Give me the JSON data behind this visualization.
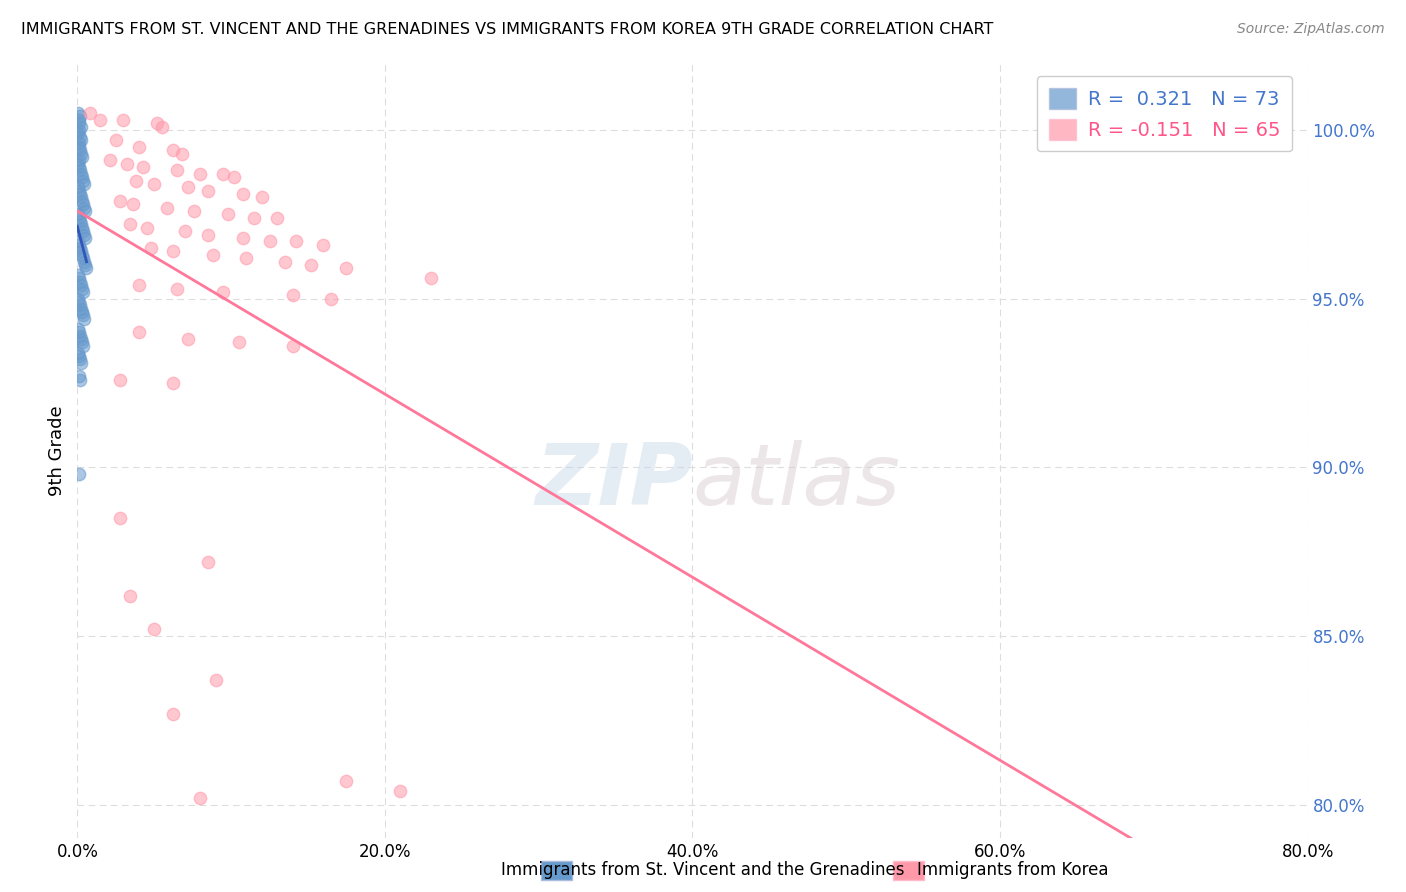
{
  "title": "IMMIGRANTS FROM ST. VINCENT AND THE GRENADINES VS IMMIGRANTS FROM KOREA 9TH GRADE CORRELATION CHART",
  "source": "Source: ZipAtlas.com",
  "ylabel": "9th Grade",
  "yticks": [
    80.0,
    85.0,
    90.0,
    95.0,
    100.0
  ],
  "xticks": [
    0.0,
    20.0,
    40.0,
    60.0,
    80.0
  ],
  "xtick_labels": [
    "0.0%",
    "20.0%",
    "40.0%",
    "60.0%",
    "80.0%"
  ],
  "xmin": 0.0,
  "xmax": 80.0,
  "ymin": 79.0,
  "ymax": 102.0,
  "blue_R": 0.321,
  "blue_N": 73,
  "pink_R": -0.151,
  "pink_N": 65,
  "blue_color": "#6699CC",
  "pink_color": "#FF99AA",
  "blue_label": "Immigrants from St. Vincent and the Grenadines",
  "pink_label": "Immigrants from Korea",
  "watermark_zip": "ZIP",
  "watermark_atlas": "atlas",
  "blue_points": [
    [
      0.05,
      100.5
    ],
    [
      0.1,
      100.3
    ],
    [
      0.18,
      100.4
    ],
    [
      0.08,
      100.2
    ],
    [
      0.22,
      100.1
    ],
    [
      0.12,
      100.0
    ],
    [
      0.06,
      99.9
    ],
    [
      0.15,
      99.8
    ],
    [
      0.25,
      99.7
    ],
    [
      0.09,
      99.6
    ],
    [
      0.13,
      99.5
    ],
    [
      0.19,
      99.4
    ],
    [
      0.23,
      99.3
    ],
    [
      0.31,
      99.2
    ],
    [
      0.09,
      99.1
    ],
    [
      0.06,
      99.0
    ],
    [
      0.13,
      98.9
    ],
    [
      0.19,
      98.8
    ],
    [
      0.26,
      98.7
    ],
    [
      0.33,
      98.6
    ],
    [
      0.39,
      98.5
    ],
    [
      0.43,
      98.4
    ],
    [
      0.06,
      98.3
    ],
    [
      0.09,
      98.2
    ],
    [
      0.16,
      98.1
    ],
    [
      0.23,
      98.0
    ],
    [
      0.29,
      97.9
    ],
    [
      0.36,
      97.8
    ],
    [
      0.43,
      97.7
    ],
    [
      0.49,
      97.6
    ],
    [
      0.06,
      97.5
    ],
    [
      0.11,
      97.4
    ],
    [
      0.19,
      97.3
    ],
    [
      0.26,
      97.2
    ],
    [
      0.33,
      97.1
    ],
    [
      0.39,
      97.0
    ],
    [
      0.46,
      96.9
    ],
    [
      0.53,
      96.8
    ],
    [
      0.07,
      96.7
    ],
    [
      0.13,
      96.6
    ],
    [
      0.19,
      96.5
    ],
    [
      0.25,
      96.4
    ],
    [
      0.31,
      96.3
    ],
    [
      0.37,
      96.2
    ],
    [
      0.43,
      96.1
    ],
    [
      0.49,
      96.0
    ],
    [
      0.55,
      95.9
    ],
    [
      0.07,
      95.7
    ],
    [
      0.13,
      95.6
    ],
    [
      0.19,
      95.5
    ],
    [
      0.25,
      95.4
    ],
    [
      0.31,
      95.3
    ],
    [
      0.37,
      95.2
    ],
    [
      0.07,
      95.0
    ],
    [
      0.13,
      94.9
    ],
    [
      0.19,
      94.8
    ],
    [
      0.25,
      94.7
    ],
    [
      0.33,
      94.6
    ],
    [
      0.39,
      94.5
    ],
    [
      0.46,
      94.4
    ],
    [
      0.07,
      94.1
    ],
    [
      0.13,
      94.0
    ],
    [
      0.19,
      93.9
    ],
    [
      0.25,
      93.8
    ],
    [
      0.33,
      93.7
    ],
    [
      0.39,
      93.6
    ],
    [
      0.07,
      93.4
    ],
    [
      0.13,
      93.3
    ],
    [
      0.19,
      93.2
    ],
    [
      0.26,
      93.1
    ],
    [
      0.09,
      92.7
    ],
    [
      0.15,
      92.6
    ],
    [
      0.09,
      89.8
    ]
  ],
  "pink_points": [
    [
      0.8,
      100.5
    ],
    [
      1.5,
      100.3
    ],
    [
      3.0,
      100.3
    ],
    [
      5.2,
      100.2
    ],
    [
      5.5,
      100.1
    ],
    [
      2.5,
      99.7
    ],
    [
      4.0,
      99.5
    ],
    [
      6.2,
      99.4
    ],
    [
      6.8,
      99.3
    ],
    [
      2.1,
      99.1
    ],
    [
      3.2,
      99.0
    ],
    [
      4.3,
      98.9
    ],
    [
      6.5,
      98.8
    ],
    [
      8.0,
      98.7
    ],
    [
      9.5,
      98.7
    ],
    [
      10.2,
      98.6
    ],
    [
      3.8,
      98.5
    ],
    [
      5.0,
      98.4
    ],
    [
      7.2,
      98.3
    ],
    [
      8.5,
      98.2
    ],
    [
      10.8,
      98.1
    ],
    [
      12.0,
      98.0
    ],
    [
      2.8,
      97.9
    ],
    [
      3.6,
      97.8
    ],
    [
      5.8,
      97.7
    ],
    [
      7.6,
      97.6
    ],
    [
      9.8,
      97.5
    ],
    [
      11.5,
      97.4
    ],
    [
      13.0,
      97.4
    ],
    [
      3.4,
      97.2
    ],
    [
      4.5,
      97.1
    ],
    [
      7.0,
      97.0
    ],
    [
      8.5,
      96.9
    ],
    [
      10.8,
      96.8
    ],
    [
      12.5,
      96.7
    ],
    [
      14.2,
      96.7
    ],
    [
      16.0,
      96.6
    ],
    [
      4.8,
      96.5
    ],
    [
      6.2,
      96.4
    ],
    [
      8.8,
      96.3
    ],
    [
      11.0,
      96.2
    ],
    [
      13.5,
      96.1
    ],
    [
      15.2,
      96.0
    ],
    [
      17.5,
      95.9
    ],
    [
      23.0,
      95.6
    ],
    [
      4.0,
      95.4
    ],
    [
      6.5,
      95.3
    ],
    [
      9.5,
      95.2
    ],
    [
      14.0,
      95.1
    ],
    [
      16.5,
      95.0
    ],
    [
      4.0,
      94.0
    ],
    [
      7.2,
      93.8
    ],
    [
      10.5,
      93.7
    ],
    [
      14.0,
      93.6
    ],
    [
      2.8,
      92.6
    ],
    [
      6.2,
      92.5
    ],
    [
      2.8,
      88.5
    ],
    [
      5.0,
      85.2
    ],
    [
      9.0,
      83.7
    ],
    [
      17.5,
      80.7
    ],
    [
      8.5,
      87.2
    ],
    [
      3.4,
      86.2
    ],
    [
      6.2,
      82.7
    ],
    [
      21.0,
      80.4
    ],
    [
      8.0,
      80.2
    ]
  ],
  "blue_line_color": "#3355BB",
  "pink_line_color": "#FF7799",
  "background_color": "#FFFFFF",
  "grid_color": "#DDDDDD"
}
